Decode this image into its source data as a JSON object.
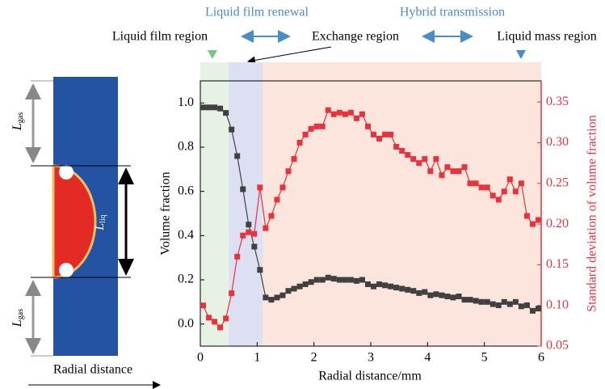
{
  "chart_data": {
    "type": "line",
    "x": [
      0.05,
      0.15,
      0.25,
      0.35,
      0.45,
      0.55,
      0.65,
      0.75,
      0.85,
      0.95,
      1.05,
      1.15,
      1.25,
      1.35,
      1.45,
      1.55,
      1.65,
      1.75,
      1.85,
      1.95,
      2.05,
      2.15,
      2.25,
      2.35,
      2.45,
      2.55,
      2.65,
      2.75,
      2.85,
      2.95,
      3.05,
      3.15,
      3.25,
      3.35,
      3.45,
      3.55,
      3.65,
      3.75,
      3.85,
      3.95,
      4.05,
      4.15,
      4.25,
      4.35,
      4.45,
      4.55,
      4.65,
      4.75,
      4.85,
      4.95,
      5.05,
      5.15,
      5.25,
      5.35,
      5.45,
      5.55,
      5.65,
      5.75,
      5.85,
      5.95
    ],
    "series": [
      {
        "name": "Volume fraction",
        "color": "#404040",
        "axis": "y",
        "values": [
          0.98,
          0.98,
          0.98,
          0.975,
          0.955,
          0.88,
          0.76,
          0.61,
          0.45,
          0.35,
          0.245,
          0.12,
          0.11,
          0.12,
          0.13,
          0.15,
          0.16,
          0.17,
          0.18,
          0.19,
          0.2,
          0.2,
          0.21,
          0.205,
          0.2,
          0.2,
          0.2,
          0.195,
          0.2,
          0.18,
          0.17,
          0.18,
          0.175,
          0.17,
          0.165,
          0.16,
          0.155,
          0.15,
          0.14,
          0.145,
          0.13,
          0.135,
          0.13,
          0.125,
          0.12,
          0.125,
          0.11,
          0.11,
          0.105,
          0.1,
          0.1,
          0.09,
          0.085,
          0.1,
          0.09,
          0.1,
          0.08,
          0.085,
          0.06,
          0.07
        ]
      },
      {
        "name": "Standard deviation of volume fraction",
        "color": "#e8323c",
        "axis": "y2",
        "values": [
          0.1,
          0.085,
          0.08,
          0.073,
          0.084,
          0.115,
          0.16,
          0.186,
          0.19,
          0.188,
          0.245,
          0.195,
          0.21,
          0.23,
          0.245,
          0.265,
          0.28,
          0.3,
          0.31,
          0.317,
          0.32,
          0.32,
          0.34,
          0.335,
          0.337,
          0.335,
          0.337,
          0.33,
          0.335,
          0.32,
          0.31,
          0.305,
          0.31,
          0.31,
          0.295,
          0.29,
          0.285,
          0.28,
          0.275,
          0.28,
          0.265,
          0.28,
          0.26,
          0.27,
          0.265,
          0.265,
          0.27,
          0.25,
          0.25,
          0.245,
          0.245,
          0.235,
          0.23,
          0.24,
          0.255,
          0.24,
          0.25,
          0.21,
          0.2,
          0.205
        ]
      }
    ],
    "xlabel": "Radial distance/mm",
    "ylabel": "Volume fraction",
    "y2label": "Standard deviation of volume fraction",
    "xlim": [
      0,
      6
    ],
    "xticks": [
      0,
      1,
      2,
      3,
      4,
      5,
      6
    ],
    "ylim": [
      -0.1,
      1.1
    ],
    "yticks": [
      {
        "value": 0,
        "label": "0.0"
      },
      0.2,
      0.4,
      0.6,
      0.8,
      {
        "value": 1,
        "label": "1.0"
      }
    ],
    "y2lim": [
      0.05,
      0.376
    ],
    "y2ticks": [
      0.05,
      {
        "value": 0.1,
        "label": "0.10"
      },
      0.15,
      {
        "value": 0.2,
        "label": "0.20"
      },
      0.25,
      {
        "value": 0.3,
        "label": "0.30"
      },
      0.35
    ],
    "shaded_regions": [
      {
        "from": 0,
        "to": 0.5,
        "color": "#e6f2e4"
      },
      {
        "from": 0.5,
        "to": 1.1,
        "color": "#dde0f2"
      },
      {
        "from": 1.1,
        "to": 6,
        "color": "#fbe5dc"
      }
    ],
    "annotations": {
      "film_renewal": "Liquid film renewal",
      "hybrid": "Hybrid transmission",
      "film_region": "Liquid film region",
      "exchange_region": "Exchange region",
      "mass_region": "Liquid mass region"
    },
    "diagram": {
      "l_gas_top": {
        "main": "L",
        "sub": "gas"
      },
      "l_liq": {
        "main": "L",
        "sub": "liq"
      },
      "l_gas_bottom": {
        "main": "L",
        "sub": "gas"
      },
      "axis_label": "Radial distance"
    }
  }
}
